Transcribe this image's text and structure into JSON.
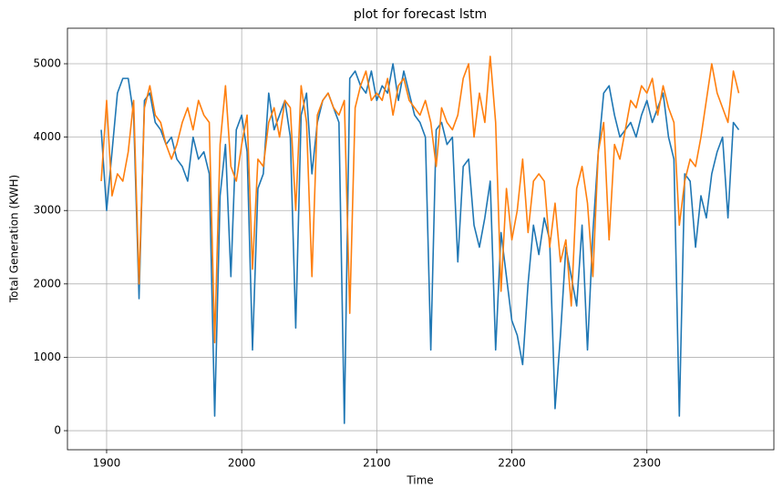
{
  "chart_data": {
    "type": "line",
    "title": "plot for forecast lstm",
    "x_label": "Time",
    "y_label": "Total Generation (KWH)",
    "x": [
      1896,
      1900,
      1904,
      1908,
      1912,
      1916,
      1920,
      1924,
      1928,
      1932,
      1936,
      1940,
      1944,
      1948,
      1952,
      1956,
      1960,
      1964,
      1968,
      1972,
      1976,
      1980,
      1984,
      1988,
      1992,
      1996,
      2000,
      2004,
      2008,
      2012,
      2016,
      2020,
      2024,
      2028,
      2032,
      2036,
      2040,
      2044,
      2048,
      2052,
      2056,
      2060,
      2064,
      2068,
      2072,
      2076,
      2080,
      2084,
      2088,
      2092,
      2096,
      2100,
      2104,
      2108,
      2112,
      2116,
      2120,
      2124,
      2128,
      2132,
      2136,
      2140,
      2144,
      2148,
      2152,
      2156,
      2160,
      2164,
      2168,
      2172,
      2176,
      2180,
      2184,
      2188,
      2192,
      2196,
      2200,
      2204,
      2208,
      2212,
      2216,
      2220,
      2224,
      2228,
      2232,
      2236,
      2240,
      2244,
      2248,
      2252,
      2256,
      2260,
      2264,
      2268,
      2272,
      2276,
      2280,
      2284,
      2288,
      2292,
      2296,
      2300,
      2304,
      2308,
      2312,
      2316,
      2320,
      2324,
      2328,
      2332,
      2336,
      2340,
      2344,
      2348,
      2352,
      2356,
      2360,
      2364,
      2368
    ],
    "series": [
      {
        "color": "#1f77b4",
        "values": [
          4100,
          3000,
          3800,
          4600,
          4800,
          4800,
          4300,
          1800,
          4500,
          4600,
          4200,
          4100,
          3900,
          4000,
          3700,
          3600,
          3400,
          4000,
          3700,
          3800,
          3500,
          200,
          3200,
          3900,
          2100,
          4100,
          4300,
          3800,
          1100,
          3300,
          3500,
          4600,
          4100,
          4300,
          4500,
          4000,
          1400,
          4300,
          4600,
          3500,
          4200,
          4500,
          4600,
          4400,
          4200,
          100,
          4800,
          4900,
          4700,
          4600,
          4900,
          4500,
          4700,
          4600,
          5000,
          4500,
          4900,
          4600,
          4300,
          4200,
          4000,
          1100,
          4100,
          4200,
          3900,
          4000,
          2300,
          3600,
          3700,
          2800,
          2500,
          2900,
          3400,
          1100,
          2700,
          2100,
          1500,
          1300,
          900,
          2000,
          2800,
          2400,
          2900,
          2600,
          300,
          1300,
          2500,
          2100,
          1700,
          2800,
          1100,
          2700,
          3800,
          4600,
          4700,
          4300,
          4000,
          4100,
          4200,
          4000,
          4300,
          4500,
          4200,
          4400,
          4600,
          4000,
          3700,
          200,
          3500,
          3400,
          2500,
          3200,
          2900,
          3500,
          3800,
          4000,
          2900,
          4200,
          4100
        ]
      },
      {
        "color": "#ff7f0e",
        "values": [
          3400,
          4500,
          3200,
          3500,
          3400,
          3800,
          4500,
          2000,
          4400,
          4700,
          4300,
          4200,
          3900,
          3700,
          3900,
          4200,
          4400,
          4100,
          4500,
          4300,
          4200,
          1200,
          3900,
          4700,
          3600,
          3400,
          3900,
          4300,
          2200,
          3700,
          3600,
          4200,
          4400,
          4000,
          4500,
          4400,
          3000,
          4700,
          4200,
          2100,
          4300,
          4500,
          4600,
          4400,
          4300,
          4500,
          1600,
          4400,
          4700,
          4900,
          4500,
          4600,
          4500,
          4800,
          4300,
          4700,
          4800,
          4500,
          4400,
          4300,
          4500,
          4200,
          3600,
          4400,
          4200,
          4100,
          4300,
          4800,
          5000,
          4000,
          4600,
          4200,
          5100,
          4200,
          1900,
          3300,
          2600,
          3000,
          3700,
          2700,
          3400,
          3500,
          3400,
          2500,
          3100,
          2300,
          2600,
          1700,
          3300,
          3600,
          3100,
          2100,
          3800,
          4200,
          2600,
          3900,
          3700,
          4100,
          4500,
          4400,
          4700,
          4600,
          4800,
          4300,
          4700,
          4400,
          4200,
          2800,
          3400,
          3700,
          3600,
          4000,
          4500,
          5000,
          4600,
          4400,
          4200,
          4900,
          4600
        ]
      }
    ],
    "xlim": [
      1871,
      2394
    ],
    "xticks": [
      1900,
      2000,
      2100,
      2200,
      2300
    ],
    "ylim": [
      -260,
      5484
    ],
    "yticks": [
      0,
      1000,
      2000,
      3000,
      4000,
      5000
    ],
    "grid": true
  }
}
